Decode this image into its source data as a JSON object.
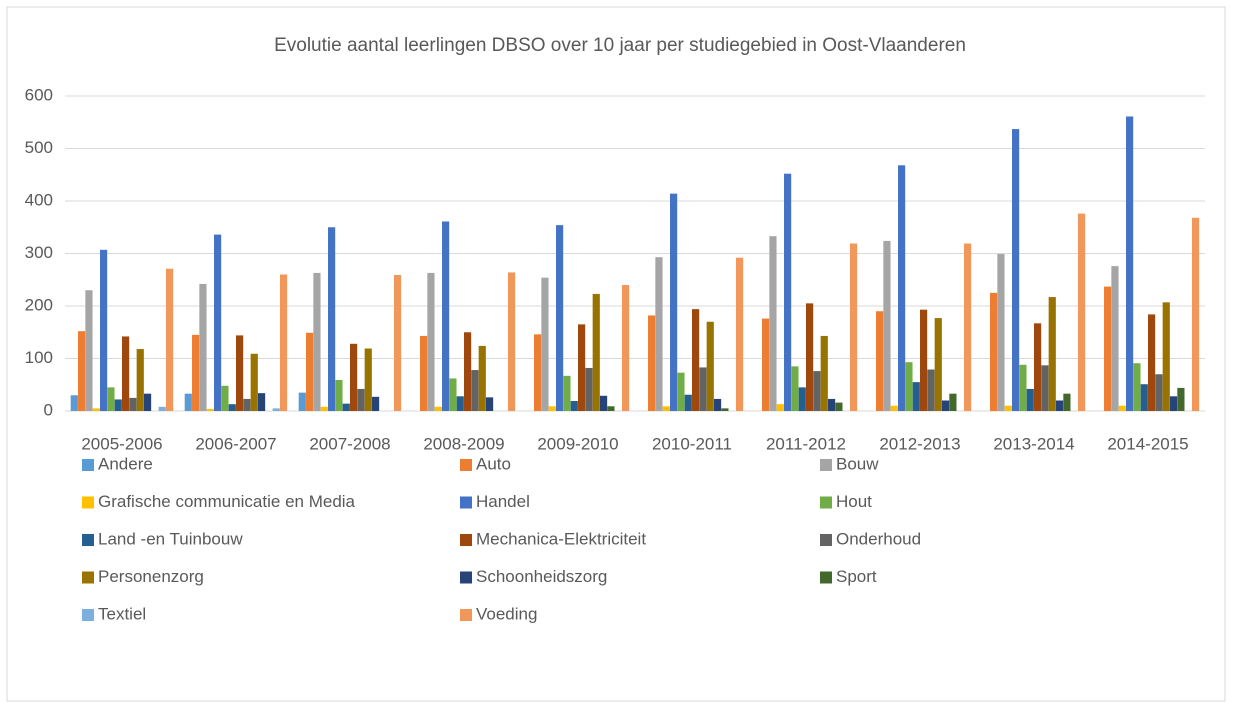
{
  "chart_data": {
    "type": "bar",
    "title": "Evolutie aantal leerlingen DBSO over 10 jaar per studiegebied in Oost-Vlaanderen",
    "categories": [
      "2005-2006",
      "2006-2007",
      "2007-2008",
      "2008-2009",
      "2009-2010",
      "2010-2011",
      "2011-2012",
      "2012-2013",
      "2013-2014",
      "2014-2015"
    ],
    "ylim": [
      0,
      600
    ],
    "yticks": [
      0,
      100,
      200,
      300,
      400,
      500,
      600
    ],
    "grid": true,
    "legend": "bottom",
    "series": [
      {
        "name": "Andere",
        "color": "#5B9BD5",
        "values": [
          30,
          33,
          35,
          0,
          0,
          0,
          0,
          0,
          0,
          0
        ]
      },
      {
        "name": "Auto",
        "color": "#ED7D31",
        "values": [
          152,
          145,
          149,
          143,
          146,
          182,
          176,
          190,
          225,
          237
        ]
      },
      {
        "name": "Bouw",
        "color": "#A5A5A5",
        "values": [
          230,
          242,
          263,
          263,
          254,
          293,
          333,
          324,
          299,
          276
        ]
      },
      {
        "name": "Grafische communicatie en Media",
        "color": "#FFC000",
        "values": [
          5,
          4,
          8,
          8,
          9,
          9,
          13,
          10,
          10,
          10
        ]
      },
      {
        "name": "Handel",
        "color": "#4472C4",
        "values": [
          307,
          336,
          350,
          361,
          354,
          414,
          452,
          468,
          537,
          561
        ]
      },
      {
        "name": "Hout",
        "color": "#70AD47",
        "values": [
          45,
          48,
          59,
          62,
          67,
          73,
          85,
          93,
          88,
          91
        ]
      },
      {
        "name": "Land -en Tuinbouw",
        "color": "#255E91",
        "values": [
          22,
          13,
          14,
          28,
          19,
          31,
          45,
          55,
          42,
          51
        ]
      },
      {
        "name": "Mechanica-Elektriciteit",
        "color": "#9E480E",
        "values": [
          142,
          144,
          128,
          150,
          165,
          194,
          205,
          193,
          167,
          184
        ]
      },
      {
        "name": "Onderhoud",
        "color": "#636363",
        "values": [
          25,
          23,
          42,
          78,
          82,
          83,
          76,
          79,
          87,
          70
        ]
      },
      {
        "name": "Personenzorg",
        "color": "#997300",
        "values": [
          118,
          109,
          119,
          124,
          223,
          170,
          143,
          177,
          217,
          207
        ]
      },
      {
        "name": "Schoonheidszorg",
        "color": "#264478",
        "values": [
          33,
          34,
          27,
          26,
          29,
          23,
          23,
          20,
          20,
          28
        ]
      },
      {
        "name": "Sport",
        "color": "#43682B",
        "values": [
          0,
          0,
          0,
          0,
          9,
          5,
          16,
          33,
          33,
          44
        ]
      },
      {
        "name": "Textiel",
        "color": "#7CAFDD",
        "values": [
          8,
          5,
          0,
          0,
          0,
          0,
          0,
          0,
          0,
          0
        ]
      },
      {
        "name": "Voeding",
        "color": "#F1975A",
        "values": [
          271,
          260,
          259,
          264,
          240,
          292,
          319,
          319,
          376,
          368
        ]
      }
    ]
  }
}
